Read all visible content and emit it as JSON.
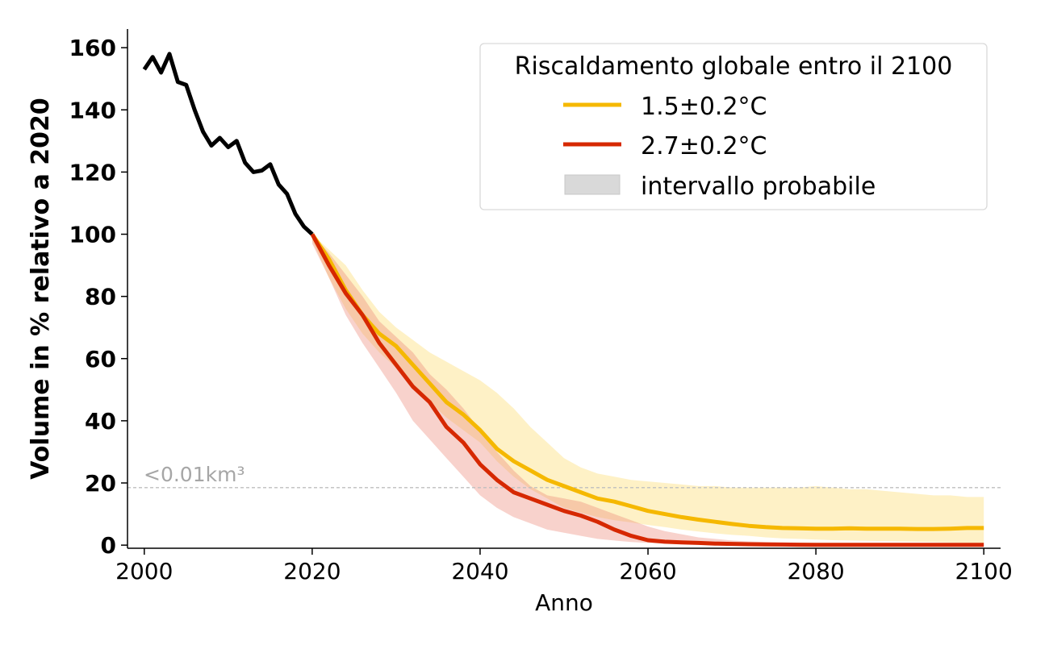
{
  "chart_data": {
    "type": "line",
    "xlabel": "Anno",
    "ylabel": "Volume in % relativo a 2020",
    "xlim": [
      1998,
      2102
    ],
    "ylim": [
      -1,
      166
    ],
    "xticks": [
      2000,
      2020,
      2040,
      2060,
      2080,
      2100
    ],
    "yticks": [
      0,
      20,
      40,
      60,
      80,
      100,
      120,
      140,
      160
    ],
    "grid": false,
    "legend": {
      "title": "Riscaldamento globale entro il 2100",
      "placement": "top-right",
      "entries": [
        "1.5±0.2°C",
        "2.7±0.2°C",
        "intervallo probabile"
      ]
    },
    "threshold": {
      "y": 18.5,
      "label": "<0.01km³",
      "color": "#bfbfbf"
    },
    "historical": {
      "color": "#000000",
      "x": [
        2000,
        2001,
        2002,
        2003,
        2004,
        2005,
        2006,
        2007,
        2008,
        2009,
        2010,
        2011,
        2012,
        2013,
        2014,
        2015,
        2016,
        2017,
        2018,
        2019,
        2020
      ],
      "y": [
        153,
        157,
        152,
        158,
        149,
        148,
        140,
        133,
        128.5,
        131,
        128,
        130,
        123,
        120,
        120.5,
        122.5,
        116,
        113,
        106.5,
        102.5,
        100
      ]
    },
    "series": [
      {
        "name": "1.5±0.2°C",
        "color": "#f5b800",
        "band_color": "#fdd96a",
        "x": [
          2020,
          2022,
          2024,
          2026,
          2028,
          2030,
          2032,
          2034,
          2036,
          2038,
          2040,
          2042,
          2044,
          2046,
          2048,
          2050,
          2052,
          2054,
          2056,
          2058,
          2060,
          2062,
          2064,
          2066,
          2068,
          2070,
          2072,
          2074,
          2076,
          2078,
          2080,
          2082,
          2084,
          2086,
          2088,
          2090,
          2092,
          2094,
          2096,
          2098,
          2100
        ],
        "y": [
          100,
          92,
          82,
          74,
          68,
          64,
          58,
          52,
          46,
          42,
          37,
          31,
          27,
          24,
          21,
          19,
          17,
          15,
          14,
          12.5,
          11,
          10,
          9,
          8.2,
          7.5,
          6.8,
          6.2,
          5.8,
          5.5,
          5.4,
          5.3,
          5.3,
          5.4,
          5.3,
          5.3,
          5.3,
          5.2,
          5.2,
          5.3,
          5.5,
          5.5
        ],
        "low": [
          98,
          86,
          76,
          68,
          62,
          57,
          52,
          46,
          41,
          37,
          33,
          27,
          22,
          18,
          15,
          12,
          10.5,
          9,
          8,
          7.3,
          6.5,
          5.8,
          5,
          4.4,
          3.8,
          3.3,
          3,
          2.5,
          2.2,
          2,
          1.8,
          1.6,
          1.5,
          1.4,
          1.3,
          1.2,
          1.1,
          1,
          0.9,
          0.8,
          0.7
        ],
        "high": [
          100,
          95,
          90,
          82,
          75,
          70,
          66,
          62,
          59,
          56,
          53,
          49,
          44,
          38,
          33,
          28,
          25,
          23,
          22,
          21,
          20.5,
          20,
          19.5,
          19,
          19,
          18.5,
          18.5,
          18.5,
          18.5,
          18.5,
          19,
          18.5,
          18,
          18,
          17.5,
          17,
          16.5,
          16,
          16,
          15.5,
          15.5
        ]
      },
      {
        "name": "2.7±0.2°C",
        "color": "#d62800",
        "band_color": "#ec8a78",
        "x": [
          2020,
          2022,
          2024,
          2026,
          2028,
          2030,
          2032,
          2034,
          2036,
          2038,
          2040,
          2042,
          2044,
          2046,
          2048,
          2050,
          2052,
          2054,
          2056,
          2058,
          2060,
          2062,
          2064,
          2066,
          2068,
          2070,
          2072,
          2074,
          2076,
          2078,
          2080,
          2082,
          2084,
          2086,
          2088,
          2090,
          2092,
          2094,
          2096,
          2098,
          2100
        ],
        "y": [
          100,
          90,
          81,
          74,
          65,
          58,
          51,
          46,
          38,
          33,
          26,
          21,
          17,
          15,
          13,
          11,
          9.5,
          7.5,
          5,
          3,
          1.6,
          1.1,
          0.9,
          0.7,
          0.5,
          0.4,
          0.3,
          0.25,
          0.2,
          0.15,
          0.12,
          0.1,
          0.1,
          0.1,
          0.1,
          0.1,
          0.1,
          0.1,
          0.1,
          0.1,
          0.1
        ],
        "low": [
          97,
          86,
          74,
          65,
          57,
          49,
          40,
          34,
          28,
          22,
          16,
          12,
          9,
          7,
          5,
          4,
          3,
          2,
          1.5,
          1,
          0.7,
          0.5,
          0.4,
          0.3,
          0.2,
          0.15,
          0.1,
          0.1,
          0.1,
          0.1,
          0.1,
          0.1,
          0.1,
          0.1,
          0.1,
          0.1,
          0.1,
          0.1,
          0.1,
          0.1,
          0.1
        ],
        "high": [
          100,
          94,
          87,
          80,
          72,
          67,
          62,
          55,
          50,
          44,
          37,
          30,
          24,
          19,
          16,
          15,
          14,
          12,
          10,
          8,
          6,
          4.5,
          3.5,
          2.5,
          2,
          1.5,
          1.2,
          1,
          0.8,
          0.7,
          0.6,
          0.5,
          0.5,
          0.4,
          0.4,
          0.3,
          0.3,
          0.3,
          0.3,
          0.2,
          0.2
        ]
      }
    ]
  }
}
